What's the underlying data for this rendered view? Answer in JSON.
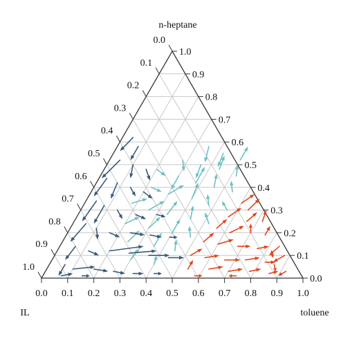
{
  "chart_data": {
    "type": "ternary-quiver",
    "vertex_labels": {
      "top": "n-heptane",
      "bottom_left": "IL",
      "bottom_right": "toluene"
    },
    "axes": {
      "bottom": {
        "component": "toluene",
        "ticks": [
          "0.0",
          "0.1",
          "0.2",
          "0.3",
          "0.4",
          "0.5",
          "0.6",
          "0.7",
          "0.8",
          "0.9",
          "1.0"
        ]
      },
      "left": {
        "component": "IL",
        "ticks": [
          "0.0",
          "0.1",
          "0.2",
          "0.3",
          "0.4",
          "0.5",
          "0.6",
          "0.7",
          "0.8",
          "0.9",
          "1.0"
        ]
      },
      "right": {
        "component": "n-heptane",
        "ticks": [
          "0.0",
          "0.1",
          "0.2",
          "0.3",
          "0.4",
          "0.5",
          "0.6",
          "0.7",
          "0.8",
          "0.9",
          "1.0"
        ]
      }
    },
    "grid": true,
    "grid_step": 0.1,
    "colors": {
      "frame": "#333333",
      "grid": "#c8c8c8",
      "heptane_region": "#6ec1c1",
      "il_region": "#3b5a78",
      "toluene_region": "#e0471b"
    },
    "series": [
      {
        "region": "heptane-rich",
        "color": "#6ec1c1",
        "arrows": [
          {
            "t": 0.35,
            "h": 0.58,
            "dt": 0.02,
            "dh": -0.07
          },
          {
            "t": 0.42,
            "h": 0.55,
            "dt": 0.01,
            "dh": -0.06
          },
          {
            "t": 0.5,
            "h": 0.52,
            "dt": 0.0,
            "dh": 0.06
          },
          {
            "t": 0.28,
            "h": 0.52,
            "dt": 0.03,
            "dh": -0.05
          },
          {
            "t": 0.36,
            "h": 0.5,
            "dt": 0.01,
            "dh": -0.06
          },
          {
            "t": 0.44,
            "h": 0.48,
            "dt": -0.01,
            "dh": 0.06
          },
          {
            "t": 0.52,
            "h": 0.45,
            "dt": -0.02,
            "dh": 0.05
          },
          {
            "t": 0.2,
            "h": 0.48,
            "dt": 0.05,
            "dh": -0.03
          },
          {
            "t": 0.3,
            "h": 0.45,
            "dt": 0.0,
            "dh": -0.06
          },
          {
            "t": 0.38,
            "h": 0.42,
            "dt": 0.0,
            "dh": 0.07
          },
          {
            "t": 0.46,
            "h": 0.4,
            "dt": -0.02,
            "dh": 0.06
          },
          {
            "t": 0.54,
            "h": 0.38,
            "dt": -0.03,
            "dh": 0.05
          },
          {
            "t": 0.22,
            "h": 0.4,
            "dt": 0.05,
            "dh": -0.02
          },
          {
            "t": 0.3,
            "h": 0.37,
            "dt": 0.04,
            "dh": 0.04
          },
          {
            "t": 0.4,
            "h": 0.35,
            "dt": -0.01,
            "dh": 0.07
          },
          {
            "t": 0.48,
            "h": 0.32,
            "dt": -0.03,
            "dh": 0.05
          },
          {
            "t": 0.56,
            "h": 0.3,
            "dt": -0.04,
            "dh": 0.04
          },
          {
            "t": 0.18,
            "h": 0.33,
            "dt": 0.05,
            "dh": 0.02
          },
          {
            "t": 0.26,
            "h": 0.3,
            "dt": 0.04,
            "dh": 0.04
          },
          {
            "t": 0.34,
            "h": 0.28,
            "dt": 0.01,
            "dh": 0.06
          },
          {
            "t": 0.44,
            "h": 0.26,
            "dt": -0.02,
            "dh": 0.06
          },
          {
            "t": 0.52,
            "h": 0.24,
            "dt": -0.04,
            "dh": 0.05
          },
          {
            "t": 0.2,
            "h": 0.24,
            "dt": 0.04,
            "dh": 0.03
          },
          {
            "t": 0.3,
            "h": 0.22,
            "dt": 0.02,
            "dh": 0.05
          },
          {
            "t": 0.4,
            "h": 0.2,
            "dt": 0.0,
            "dh": 0.06
          },
          {
            "t": 0.48,
            "h": 0.18,
            "dt": -0.03,
            "dh": 0.05
          },
          {
            "t": 0.25,
            "h": 0.16,
            "dt": 0.02,
            "dh": 0.05
          },
          {
            "t": 0.36,
            "h": 0.14,
            "dt": 0.0,
            "dh": 0.06
          },
          {
            "t": 0.45,
            "h": 0.12,
            "dt": -0.02,
            "dh": 0.05
          },
          {
            "t": 0.3,
            "h": 0.08,
            "dt": 0.01,
            "dh": 0.05
          },
          {
            "t": 0.4,
            "h": 0.06,
            "dt": -0.01,
            "dh": 0.04
          }
        ]
      },
      {
        "region": "IL-rich",
        "color": "#3b5a78",
        "arrows": [
          {
            "t": 0.04,
            "h": 0.62,
            "dt": -0.02,
            "dh": -0.06
          },
          {
            "t": 0.08,
            "h": 0.58,
            "dt": 0.0,
            "dh": -0.06
          },
          {
            "t": 0.04,
            "h": 0.52,
            "dt": -0.03,
            "dh": -0.08
          },
          {
            "t": 0.1,
            "h": 0.5,
            "dt": 0.02,
            "dh": -0.06
          },
          {
            "t": 0.16,
            "h": 0.48,
            "dt": 0.04,
            "dh": -0.05
          },
          {
            "t": 0.03,
            "h": 0.44,
            "dt": -0.01,
            "dh": -0.08
          },
          {
            "t": 0.08,
            "h": 0.42,
            "dt": 0.01,
            "dh": -0.07
          },
          {
            "t": 0.14,
            "h": 0.4,
            "dt": 0.04,
            "dh": -0.04
          },
          {
            "t": 0.2,
            "h": 0.38,
            "dt": 0.05,
            "dh": -0.03
          },
          {
            "t": 0.04,
            "h": 0.34,
            "dt": -0.01,
            "dh": -0.09
          },
          {
            "t": 0.08,
            "h": 0.32,
            "dt": 0.0,
            "dh": -0.08
          },
          {
            "t": 0.14,
            "h": 0.3,
            "dt": 0.04,
            "dh": -0.04
          },
          {
            "t": 0.22,
            "h": 0.28,
            "dt": 0.05,
            "dh": -0.02
          },
          {
            "t": 0.3,
            "h": 0.28,
            "dt": 0.04,
            "dh": -0.01
          },
          {
            "t": 0.05,
            "h": 0.24,
            "dt": -0.02,
            "dh": -0.08
          },
          {
            "t": 0.1,
            "h": 0.22,
            "dt": 0.03,
            "dh": -0.05
          },
          {
            "t": 0.16,
            "h": 0.2,
            "dt": 0.05,
            "dh": -0.02
          },
          {
            "t": 0.24,
            "h": 0.2,
            "dt": 0.06,
            "dh": -0.01
          },
          {
            "t": 0.32,
            "h": 0.19,
            "dt": 0.05,
            "dh": -0.01
          },
          {
            "t": 0.4,
            "h": 0.18,
            "dt": 0.03,
            "dh": 0.0
          },
          {
            "t": 0.06,
            "h": 0.14,
            "dt": -0.01,
            "dh": -0.06
          },
          {
            "t": 0.12,
            "h": 0.12,
            "dt": 0.05,
            "dh": -0.02
          },
          {
            "t": 0.2,
            "h": 0.12,
            "dt": 0.12,
            "dh": 0.02
          },
          {
            "t": 0.28,
            "h": 0.11,
            "dt": 0.1,
            "dh": 0.01
          },
          {
            "t": 0.36,
            "h": 0.1,
            "dt": 0.08,
            "dh": 0.0
          },
          {
            "t": 0.44,
            "h": 0.09,
            "dt": 0.06,
            "dh": 0.0
          },
          {
            "t": 0.06,
            "h": 0.06,
            "dt": 0.0,
            "dh": -0.05
          },
          {
            "t": 0.1,
            "h": 0.04,
            "dt": 0.08,
            "dh": 0.01
          },
          {
            "t": 0.18,
            "h": 0.04,
            "dt": 0.06,
            "dh": -0.01
          },
          {
            "t": 0.26,
            "h": 0.03,
            "dt": 0.05,
            "dh": -0.01
          },
          {
            "t": 0.34,
            "h": 0.02,
            "dt": 0.04,
            "dh": 0.0
          },
          {
            "t": 0.42,
            "h": 0.02,
            "dt": 0.03,
            "dh": 0.0
          },
          {
            "t": 0.07,
            "h": 0.01,
            "dt": 0.04,
            "dh": 0.01
          },
          {
            "t": 0.15,
            "h": 0.01,
            "dt": 0.03,
            "dh": 0.0
          }
        ]
      },
      {
        "region": "toluene-rich",
        "color": "#e0471b",
        "arrows": [
          {
            "t": 0.6,
            "h": 0.33,
            "dt": 0.03,
            "dh": 0.04
          },
          {
            "t": 0.64,
            "h": 0.3,
            "dt": 0.02,
            "dh": 0.05
          },
          {
            "t": 0.58,
            "h": 0.27,
            "dt": 0.03,
            "dh": 0.04
          },
          {
            "t": 0.66,
            "h": 0.25,
            "dt": 0.02,
            "dh": 0.04
          },
          {
            "t": 0.72,
            "h": 0.25,
            "dt": -0.01,
            "dh": 0.05
          },
          {
            "t": 0.56,
            "h": 0.22,
            "dt": 0.02,
            "dh": 0.04
          },
          {
            "t": 0.62,
            "h": 0.2,
            "dt": 0.04,
            "dh": 0.03
          },
          {
            "t": 0.7,
            "h": 0.2,
            "dt": -0.02,
            "dh": 0.04
          },
          {
            "t": 0.76,
            "h": 0.19,
            "dt": 0.0,
            "dh": 0.04
          },
          {
            "t": 0.54,
            "h": 0.16,
            "dt": 0.02,
            "dh": 0.04
          },
          {
            "t": 0.6,
            "h": 0.15,
            "dt": 0.05,
            "dh": 0.02
          },
          {
            "t": 0.68,
            "h": 0.14,
            "dt": 0.05,
            "dh": 0.0
          },
          {
            "t": 0.76,
            "h": 0.13,
            "dt": 0.04,
            "dh": 0.01
          },
          {
            "t": 0.82,
            "h": 0.12,
            "dt": 0.02,
            "dh": -0.03
          },
          {
            "t": 0.52,
            "h": 0.1,
            "dt": 0.03,
            "dh": 0.03
          },
          {
            "t": 0.58,
            "h": 0.09,
            "dt": 0.05,
            "dh": 0.01
          },
          {
            "t": 0.66,
            "h": 0.08,
            "dt": 0.06,
            "dh": 0.0
          },
          {
            "t": 0.74,
            "h": 0.08,
            "dt": 0.05,
            "dh": 0.01
          },
          {
            "t": 0.82,
            "h": 0.07,
            "dt": 0.04,
            "dh": 0.0
          },
          {
            "t": 0.86,
            "h": 0.06,
            "dt": 0.02,
            "dh": -0.03
          },
          {
            "t": 0.54,
            "h": 0.04,
            "dt": 0.0,
            "dh": 0.04
          },
          {
            "t": 0.62,
            "h": 0.04,
            "dt": 0.05,
            "dh": 0.01
          },
          {
            "t": 0.7,
            "h": 0.03,
            "dt": 0.05,
            "dh": 0.01
          },
          {
            "t": 0.78,
            "h": 0.03,
            "dt": 0.04,
            "dh": 0.01
          },
          {
            "t": 0.86,
            "h": 0.02,
            "dt": 0.03,
            "dh": 0.01
          },
          {
            "t": 0.92,
            "h": 0.03,
            "dt": -0.02,
            "dh": -0.02
          },
          {
            "t": 0.58,
            "h": 0.01,
            "dt": 0.03,
            "dh": 0.0
          },
          {
            "t": 0.74,
            "h": 0.01,
            "dt": -0.03,
            "dh": 0.0
          },
          {
            "t": 0.88,
            "h": 0.1,
            "dt": -0.03,
            "dh": -0.03
          },
          {
            "t": 0.84,
            "h": 0.14,
            "dt": -0.02,
            "dh": -0.04
          }
        ]
      }
    ]
  }
}
